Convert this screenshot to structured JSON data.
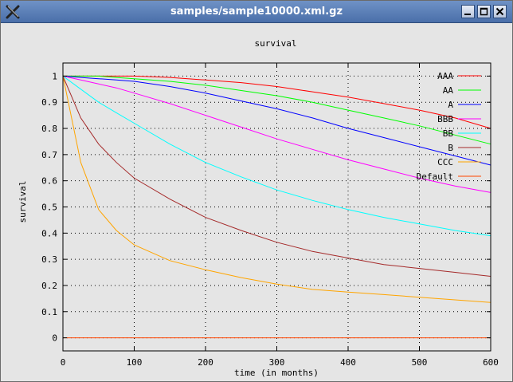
{
  "window": {
    "title": "samples/sample10000.xml.gz",
    "icon": "x-close-app-icon",
    "buttons": [
      "minimize-icon",
      "maximize-icon",
      "close-icon"
    ]
  },
  "chart_data": {
    "type": "line",
    "title": "survival",
    "xlabel": "time (in months)",
    "ylabel": "survival",
    "xlim": [
      0,
      600
    ],
    "ylim": [
      -0.05,
      1.05
    ],
    "xticks": [
      0,
      100,
      200,
      300,
      400,
      500,
      600
    ],
    "yticks": [
      0,
      0.1,
      0.2,
      0.3,
      0.4,
      0.5,
      0.6,
      0.7,
      0.8,
      0.9,
      1
    ],
    "grid": true,
    "legend_position": "top-right",
    "x": [
      0,
      25,
      50,
      75,
      100,
      150,
      200,
      250,
      300,
      350,
      400,
      450,
      500,
      550,
      600
    ],
    "series": [
      {
        "name": "AAA",
        "color": "#ff0000",
        "values": [
          1,
          1,
          1,
          1,
          1,
          0.995,
          0.985,
          0.975,
          0.96,
          0.94,
          0.92,
          0.895,
          0.87,
          0.84,
          0.8
        ]
      },
      {
        "name": "AA",
        "color": "#00ff00",
        "values": [
          1,
          1,
          1,
          0.995,
          0.99,
          0.98,
          0.965,
          0.945,
          0.925,
          0.9,
          0.87,
          0.84,
          0.81,
          0.775,
          0.74
        ]
      },
      {
        "name": "A",
        "color": "#0000ff",
        "values": [
          1,
          0.995,
          0.99,
          0.985,
          0.98,
          0.96,
          0.935,
          0.905,
          0.875,
          0.84,
          0.8,
          0.765,
          0.73,
          0.695,
          0.66
        ]
      },
      {
        "name": "BBB",
        "color": "#ff00ff",
        "values": [
          1,
          0.985,
          0.97,
          0.955,
          0.935,
          0.895,
          0.85,
          0.805,
          0.76,
          0.72,
          0.68,
          0.645,
          0.61,
          0.58,
          0.555
        ]
      },
      {
        "name": "BB",
        "color": "#00ffff",
        "values": [
          1,
          0.95,
          0.9,
          0.86,
          0.82,
          0.74,
          0.67,
          0.615,
          0.565,
          0.525,
          0.49,
          0.46,
          0.435,
          0.41,
          0.39
        ]
      },
      {
        "name": "B",
        "color": "#a52a2a",
        "values": [
          1,
          0.84,
          0.74,
          0.67,
          0.61,
          0.53,
          0.46,
          0.41,
          0.365,
          0.33,
          0.305,
          0.28,
          0.265,
          0.25,
          0.235
        ]
      },
      {
        "name": "CCC",
        "color": "#ffa500",
        "values": [
          1,
          0.67,
          0.49,
          0.41,
          0.355,
          0.295,
          0.26,
          0.23,
          0.205,
          0.185,
          0.175,
          0.165,
          0.155,
          0.145,
          0.135
        ]
      },
      {
        "name": "Default",
        "color": "#ff4500",
        "values": [
          0,
          0,
          0,
          0,
          0,
          0,
          0,
          0,
          0,
          0,
          0,
          0,
          0,
          0,
          0
        ]
      }
    ]
  }
}
